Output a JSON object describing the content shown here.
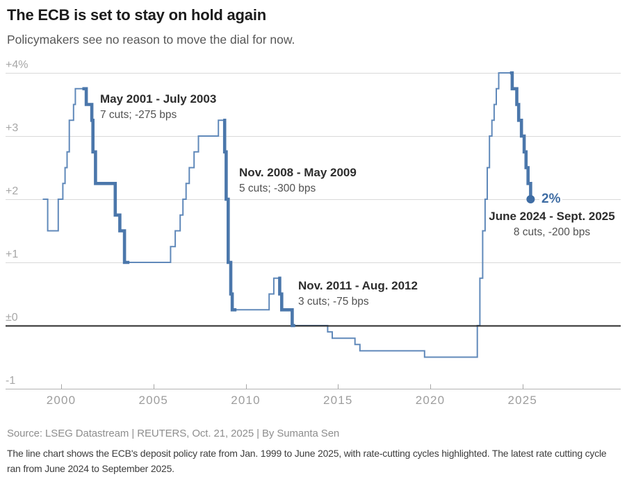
{
  "header": {
    "title": "The ECB is set to stay on hold again",
    "subtitle": "Policymakers see no reason to move the dial for now."
  },
  "chart_data": {
    "type": "line",
    "line_style": "step",
    "title": "ECB deposit policy rate",
    "unit": "%",
    "line_color": "#6089ba",
    "highlight_color": "#4b77ab",
    "end_dot_color": "#3f6da4",
    "grid_color": "#d9d9d9",
    "axis_line_color": "#b3b3b3",
    "zero_line_color": "#2b2b2b",
    "y_axis": {
      "labels": [
        "+4%",
        "+3",
        "+2",
        "+1",
        "±0",
        "-1"
      ],
      "values": [
        4,
        3,
        2,
        1,
        0,
        -1
      ],
      "range": [
        -1,
        4
      ]
    },
    "x_axis": {
      "labels": [
        "2000",
        "2005",
        "2010",
        "2015",
        "2020",
        "2025"
      ],
      "ticks": [
        2000,
        2005,
        2010,
        2015,
        2020,
        2025
      ],
      "range": [
        1999,
        2025.5
      ]
    },
    "series": [
      {
        "name": "ECB deposit policy rate",
        "points": [
          {
            "date": "Jan 1999",
            "year": 1999.0,
            "rate": 2.0
          },
          {
            "date": "Apr 1999",
            "year": 1999.27,
            "rate": 1.5
          },
          {
            "date": "Nov 1999",
            "year": 1999.84,
            "rate": 2.0
          },
          {
            "date": "Feb 2000",
            "year": 2000.09,
            "rate": 2.25
          },
          {
            "date": "Mar 2000",
            "year": 2000.21,
            "rate": 2.5
          },
          {
            "date": "Apr 2000",
            "year": 2000.32,
            "rate": 2.75
          },
          {
            "date": "Jun 2000",
            "year": 2000.44,
            "rate": 3.25
          },
          {
            "date": "Sep 2000",
            "year": 2000.67,
            "rate": 3.5
          },
          {
            "date": "Oct 2000",
            "year": 2000.77,
            "rate": 3.75
          },
          {
            "date": "May 2001",
            "year": 2001.36,
            "rate": 3.5
          },
          {
            "date": "Aug 2001",
            "year": 2001.66,
            "rate": 3.25
          },
          {
            "date": "Sep 2001",
            "year": 2001.72,
            "rate": 2.75
          },
          {
            "date": "Nov 2001",
            "year": 2001.86,
            "rate": 2.25
          },
          {
            "date": "Dec 2002",
            "year": 2002.93,
            "rate": 1.75
          },
          {
            "date": "Mar 2003",
            "year": 2003.18,
            "rate": 1.5
          },
          {
            "date": "Jun 2003",
            "year": 2003.43,
            "rate": 1.0
          },
          {
            "date": "Dec 2005",
            "year": 2005.93,
            "rate": 1.25
          },
          {
            "date": "Mar 2006",
            "year": 2006.18,
            "rate": 1.5
          },
          {
            "date": "Jun 2006",
            "year": 2006.45,
            "rate": 1.75
          },
          {
            "date": "Aug 2006",
            "year": 2006.6,
            "rate": 2.0
          },
          {
            "date": "Oct 2006",
            "year": 2006.77,
            "rate": 2.25
          },
          {
            "date": "Dec 2006",
            "year": 2006.94,
            "rate": 2.5
          },
          {
            "date": "Mar 2007",
            "year": 2007.2,
            "rate": 2.75
          },
          {
            "date": "Jun 2007",
            "year": 2007.44,
            "rate": 3.0
          },
          {
            "date": "Jul 2008",
            "year": 2008.52,
            "rate": 3.25
          },
          {
            "date": "Nov 2008",
            "year": 2008.86,
            "rate": 2.75
          },
          {
            "date": "Dec 2008",
            "year": 2008.94,
            "rate": 2.0
          },
          {
            "date": "Jan 2009",
            "year": 2009.05,
            "rate": 1.0
          },
          {
            "date": "Mar 2009",
            "year": 2009.19,
            "rate": 0.5
          },
          {
            "date": "Apr 2009",
            "year": 2009.27,
            "rate": 0.25
          },
          {
            "date": "Apr 2011",
            "year": 2011.27,
            "rate": 0.5
          },
          {
            "date": "Jul 2011",
            "year": 2011.52,
            "rate": 0.75
          },
          {
            "date": "Nov 2011",
            "year": 2011.84,
            "rate": 0.5
          },
          {
            "date": "Dec 2011",
            "year": 2011.95,
            "rate": 0.25
          },
          {
            "date": "Jul 2012",
            "year": 2012.52,
            "rate": 0.0
          },
          {
            "date": "Jun 2014",
            "year": 2014.44,
            "rate": -0.1
          },
          {
            "date": "Sep 2014",
            "year": 2014.69,
            "rate": -0.2
          },
          {
            "date": "Dec 2015",
            "year": 2015.92,
            "rate": -0.3
          },
          {
            "date": "Mar 2016",
            "year": 2016.19,
            "rate": -0.4
          },
          {
            "date": "Sep 2019",
            "year": 2019.69,
            "rate": -0.5
          },
          {
            "date": "Jul 2022",
            "year": 2022.55,
            "rate": 0.0
          },
          {
            "date": "Sep 2022",
            "year": 2022.69,
            "rate": 0.75
          },
          {
            "date": "Nov 2022",
            "year": 2022.84,
            "rate": 1.5
          },
          {
            "date": "Dec 2022",
            "year": 2022.97,
            "rate": 2.0
          },
          {
            "date": "Feb 2023",
            "year": 2023.09,
            "rate": 2.5
          },
          {
            "date": "Mar 2023",
            "year": 2023.21,
            "rate": 3.0
          },
          {
            "date": "May 2023",
            "year": 2023.34,
            "rate": 3.25
          },
          {
            "date": "Jun 2023",
            "year": 2023.46,
            "rate": 3.5
          },
          {
            "date": "Aug 2023",
            "year": 2023.58,
            "rate": 3.75
          },
          {
            "date": "Sep 2023",
            "year": 2023.71,
            "rate": 4.0
          },
          {
            "date": "Jun 2024",
            "year": 2024.44,
            "rate": 3.75
          },
          {
            "date": "Sep 2024",
            "year": 2024.69,
            "rate": 3.5
          },
          {
            "date": "Oct 2024",
            "year": 2024.79,
            "rate": 3.25
          },
          {
            "date": "Dec 2024",
            "year": 2024.94,
            "rate": 3.0
          },
          {
            "date": "Feb 2025",
            "year": 2025.09,
            "rate": 2.75
          },
          {
            "date": "Mar 2025",
            "year": 2025.19,
            "rate": 2.5
          },
          {
            "date": "Apr 2025",
            "year": 2025.3,
            "rate": 2.25
          },
          {
            "date": "Jun 2025",
            "year": 2025.44,
            "rate": 2.0
          }
        ]
      }
    ],
    "cutting_cycles": [
      {
        "label": "May 2001 - July 2003",
        "detail": "7 cuts; -275 bps",
        "start_year": 2001.15,
        "end_year": 2003.7
      },
      {
        "label": "Nov. 2008 - May 2009",
        "detail": "5 cuts; -300 bps",
        "start_year": 2008.78,
        "end_year": 2009.5
      },
      {
        "label": "Nov. 2011 - Aug. 2012",
        "detail": "3 cuts; -75 bps",
        "start_year": 2011.76,
        "end_year": 2012.68
      },
      {
        "label": "June 2024 - Sept. 2025",
        "detail": "8 cuts, -200 bps",
        "start_year": 2024.32,
        "end_year": 2025.5
      }
    ],
    "end_label": "2%",
    "latest_rate": 2.0
  },
  "footer": {
    "source": "Source: LSEG Datastream | REUTERS, Oct. 21, 2025 | By Sumanta Sen",
    "caption": "The line chart shows the ECB's deposit policy rate from Jan. 1999 to June 2025, with rate-cutting cycles highlighted. The latest rate cutting cycle ran from June 2024 to September 2025."
  }
}
